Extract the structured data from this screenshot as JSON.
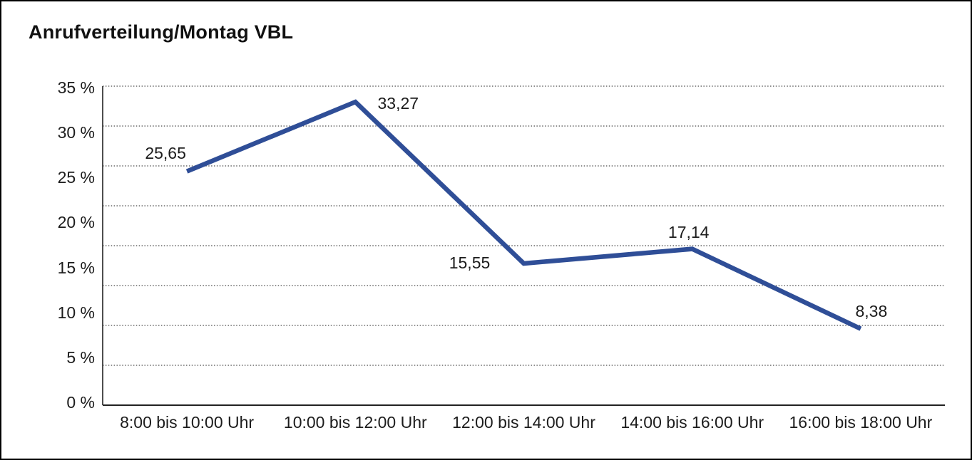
{
  "title": "Anrufverteilung/Montag VBL",
  "chart_data": {
    "type": "line",
    "title": "Anrufverteilung/Montag VBL",
    "categories": [
      "8:00 bis 10:00 Uhr",
      "10:00 bis 12:00 Uhr",
      "12:00 bis 14:00 Uhr",
      "14:00 bis 16:00 Uhr",
      "16:00 bis 18:00 Uhr"
    ],
    "values": [
      25.65,
      33.27,
      15.55,
      17.14,
      8.38
    ],
    "point_labels": [
      "25,65",
      "33,27",
      "15,55",
      "17,14",
      "8,38"
    ],
    "y_tick_labels": [
      "35 %",
      "30 %",
      "25 %",
      "20 %",
      "15 %",
      "10 %",
      "5 %",
      "0 %"
    ],
    "ylim": [
      0,
      35
    ],
    "xlabel": "",
    "ylabel": "",
    "legend": "none",
    "grid": "horizontal-dotted",
    "line_color": "#2f4e97",
    "grid_color": "#4a4a4a",
    "axis_color": "#222222",
    "text_color": "#1c1c1c"
  }
}
